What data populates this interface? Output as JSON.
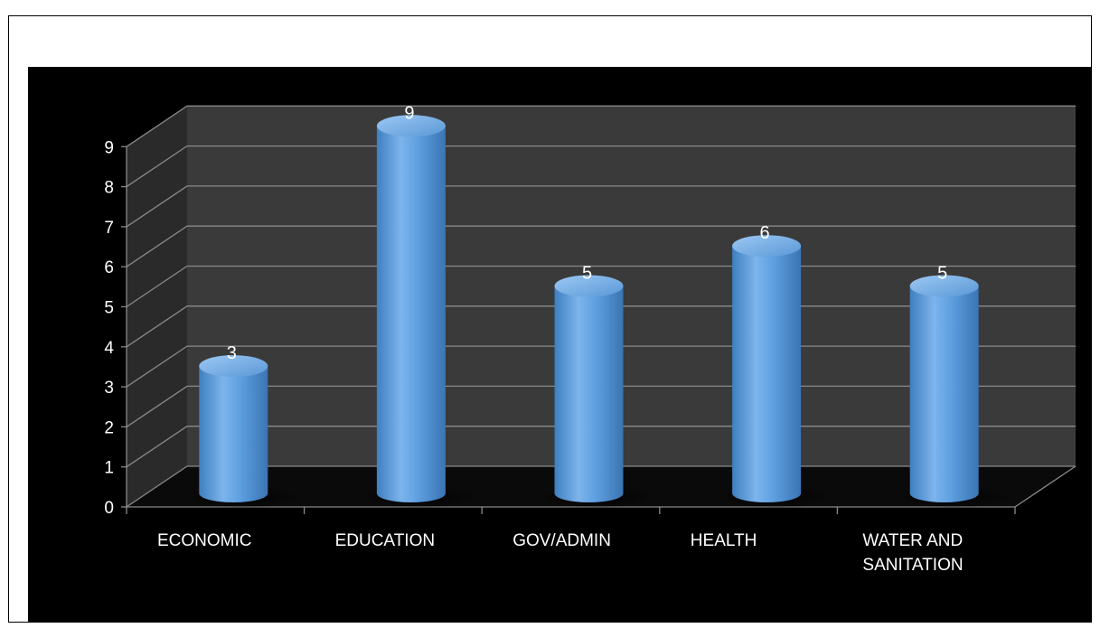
{
  "colors": {
    "background": "#000000",
    "plot_back_wall": "#3a3a3a",
    "plot_side_wall": "#2a2a2a",
    "gridline": "#8a8a8a",
    "bar": "#5b9bd5",
    "text": "#ffffff"
  },
  "chart_data": {
    "type": "bar",
    "style": "3d-cylinder",
    "categories": [
      "ECONOMIC",
      "EDUCATION",
      "GOV/ADMIN",
      "HEALTH",
      "WATER AND SANITATION"
    ],
    "category_lines": [
      [
        "ECONOMIC"
      ],
      [
        "EDUCATION"
      ],
      [
        "GOV/ADMIN"
      ],
      [
        "HEALTH"
      ],
      [
        "WATER AND",
        "SANITATION"
      ]
    ],
    "values": [
      3,
      9,
      5,
      6,
      5
    ],
    "data_labels": [
      "3",
      "9",
      "5",
      "6",
      "5"
    ],
    "y_ticks": [
      "0",
      "1",
      "2",
      "3",
      "4",
      "5",
      "6",
      "7",
      "8",
      "9"
    ],
    "ylim": [
      0,
      9
    ],
    "grid": true,
    "legend": "none"
  }
}
